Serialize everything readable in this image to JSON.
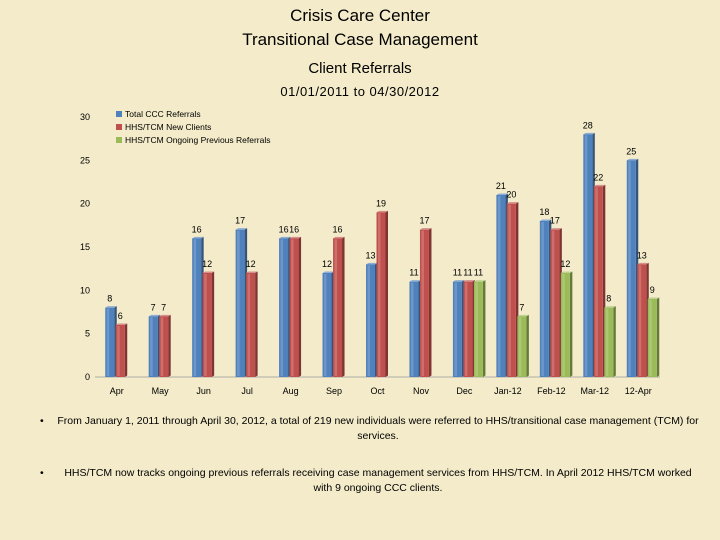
{
  "header": {
    "title1": "Crisis Care Center",
    "title2": "Transitional Case Management",
    "subtitle": "Client Referrals",
    "date_range": "01/01/2011  to  04/30/2012"
  },
  "chart_data": {
    "type": "bar",
    "categories": [
      "Apr",
      "May",
      "Jun",
      "Jul",
      "Aug",
      "Sep",
      "Oct",
      "Nov",
      "Dec",
      "Jan-12",
      "Feb-12",
      "Mar-12",
      "12-Apr"
    ],
    "series": [
      {
        "name": "Total CCC Referrals",
        "color": "#4f81bd",
        "values": [
          8,
          7,
          16,
          17,
          16,
          12,
          13,
          11,
          11,
          21,
          18,
          28,
          25
        ]
      },
      {
        "name": "HHS/TCM New Clients",
        "color": "#c0504d",
        "values": [
          6,
          7,
          12,
          12,
          16,
          16,
          19,
          17,
          11,
          20,
          17,
          22,
          13
        ]
      },
      {
        "name": "HHS/TCM Ongoing Previous Referrals",
        "color": "#9bbb59",
        "values": [
          null,
          null,
          null,
          null,
          null,
          null,
          null,
          null,
          11,
          7,
          12,
          8,
          9
        ]
      }
    ],
    "ylim": [
      0,
      30
    ],
    "yticks": [
      0,
      5,
      10,
      15,
      20,
      25,
      30
    ],
    "grid": false,
    "legend": "top-left"
  },
  "notes": [
    "From January 1, 2011 through April 30, 2012, a total of 219 new individuals were referred to HHS/transitional case management (TCM) for services.",
    "HHS/TCM now tracks ongoing previous referrals receiving case management services from HHS/TCM.  In April 2012 HHS/TCM worked with 9 ongoing CCC clients."
  ],
  "bullet_symbol": "•"
}
